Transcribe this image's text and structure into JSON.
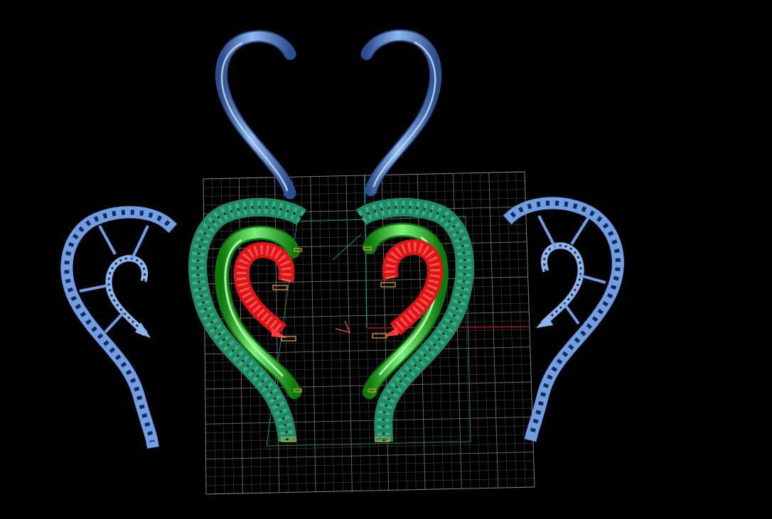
{
  "viewport": {
    "background": "#000000"
  },
  "colors": {
    "grid_line": "#8a8a8a",
    "grid_border": "#b0b0b0",
    "axis_x": "#b01010",
    "axis_y": "#12a0a0",
    "construction_line": "#0f8a70",
    "blue_hook": "#4f7fc8",
    "blue_hook_highlight": "#9cc2f2",
    "blue_lattice": "#6f9ee6",
    "blue_lattice_holes": "#1a2a4a",
    "teal_lattice": "#1f8a63",
    "teal_lattice_light": "#4fd0a0",
    "green_tube": "#1ec41e",
    "green_tube_highlight": "#9cf09c",
    "red_lattice": "#e01414",
    "red_lattice_light": "#ff7070",
    "marker": "#e0a020",
    "origin_gizmo": "#e06020"
  },
  "objects": {
    "top_hooks": [
      "blue-hook-left",
      "blue-hook-right"
    ],
    "side_lattices": [
      "blue-lattice-left",
      "blue-lattice-right"
    ],
    "center_pieces": [
      "teal-lattice-left",
      "teal-lattice-right",
      "green-tube-left",
      "green-tube-right",
      "red-lattice-left",
      "red-lattice-right"
    ]
  }
}
